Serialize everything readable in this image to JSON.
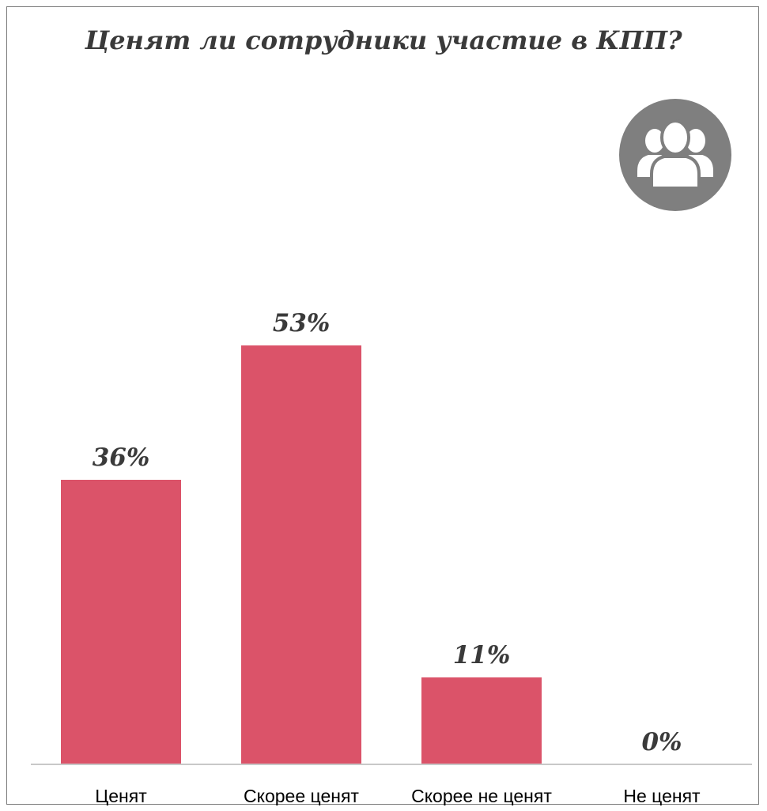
{
  "chart_data": {
    "type": "bar",
    "title": "Ценят ли сотрудники участие в КПП?",
    "categories": [
      "Ценят",
      "Скорее ценят",
      "Скорее не ценят",
      "Не ценят"
    ],
    "values": [
      36,
      53,
      11,
      0
    ],
    "data_labels": [
      "36%",
      "53%",
      "11%",
      "0%"
    ],
    "unit": "%",
    "ylim": [
      0,
      60
    ],
    "grid": false,
    "legend": "none",
    "bar_color": "#db5369",
    "axis_color": "#c8c8c8",
    "label_color": "#3a3a3a"
  },
  "icon": {
    "name": "people-group-icon",
    "background_color": "#7f7f7f",
    "foreground_color": "#ffffff"
  }
}
